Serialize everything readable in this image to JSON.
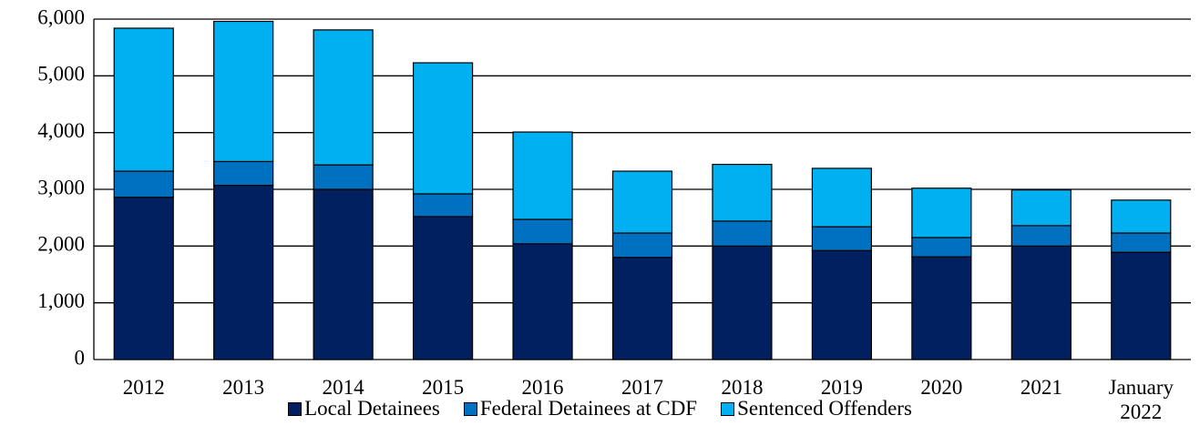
{
  "chart_data": {
    "type": "stacked_bar",
    "categories": [
      "2012",
      "2013",
      "2014",
      "2015",
      "2016",
      "2017",
      "2018",
      "2019",
      "2020",
      "2021",
      "January 2022"
    ],
    "series": [
      {
        "name": "Local Detainees",
        "color": "#002060",
        "values": [
          2860,
          3070,
          3000,
          2520,
          2040,
          1800,
          2000,
          1920,
          1810,
          2000,
          1890
        ]
      },
      {
        "name": "Federal Detainees at CDF",
        "color": "#0070c0",
        "values": [
          460,
          420,
          430,
          400,
          430,
          430,
          440,
          420,
          340,
          360,
          340
        ]
      },
      {
        "name": "Sentenced Offenders",
        "color": "#00b0f0",
        "values": [
          2520,
          2470,
          2380,
          2310,
          1540,
          1090,
          1000,
          1030,
          870,
          630,
          580
        ]
      }
    ],
    "ylim": [
      0,
      6000
    ],
    "yticks": [
      0,
      {
        "value": 1000,
        "label": "1,000"
      },
      {
        "value": 2000,
        "label": "2,000"
      },
      {
        "value": 3000,
        "label": "3,000"
      },
      {
        "value": 4000,
        "label": "4,000"
      },
      {
        "value": 5000,
        "label": "5,000"
      },
      {
        "value": 6000,
        "label": "6,000"
      }
    ],
    "grid": true
  }
}
